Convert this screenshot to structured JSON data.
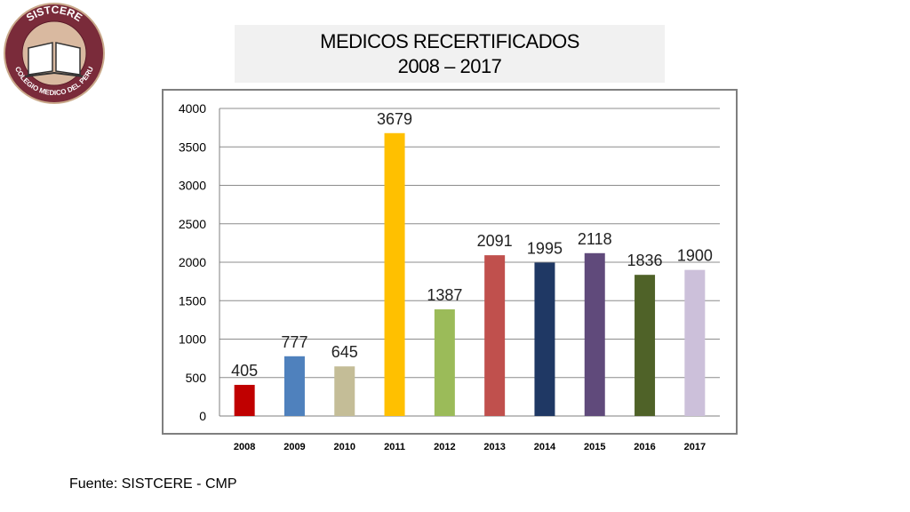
{
  "logo": {
    "top_text": "SISTCERE",
    "bottom_text": "COLEGIO MEDICO DEL PERU"
  },
  "header": {
    "title_line1": "MEDICOS RECERTIFICADOS",
    "title_line2": "2008 – 2017"
  },
  "chart_data": {
    "type": "bar",
    "categories": [
      "2008",
      "2009",
      "2010",
      "2011",
      "2012",
      "2013",
      "2014",
      "2015",
      "2016",
      "2017"
    ],
    "values": [
      405,
      777,
      645,
      3679,
      1387,
      2091,
      1995,
      2118,
      1836,
      1900
    ],
    "data_labels": [
      "405",
      "777",
      "645",
      "3679",
      "1387",
      "2091",
      "1995",
      "2118",
      "1836",
      "1900"
    ],
    "colors": [
      "#c00000",
      "#4f81bd",
      "#c4bd97",
      "#ffc000",
      "#9bbb59",
      "#c0504d",
      "#1f3864",
      "#604a7b",
      "#4f6228",
      "#ccc0da"
    ],
    "ylim": [
      0,
      4000
    ],
    "yticks": [
      0,
      500,
      1000,
      1500,
      2000,
      2500,
      3000,
      3500,
      4000
    ],
    "grid": true,
    "legend": "none"
  },
  "footer": {
    "source": "Fuente: SISTCERE - CMP"
  }
}
